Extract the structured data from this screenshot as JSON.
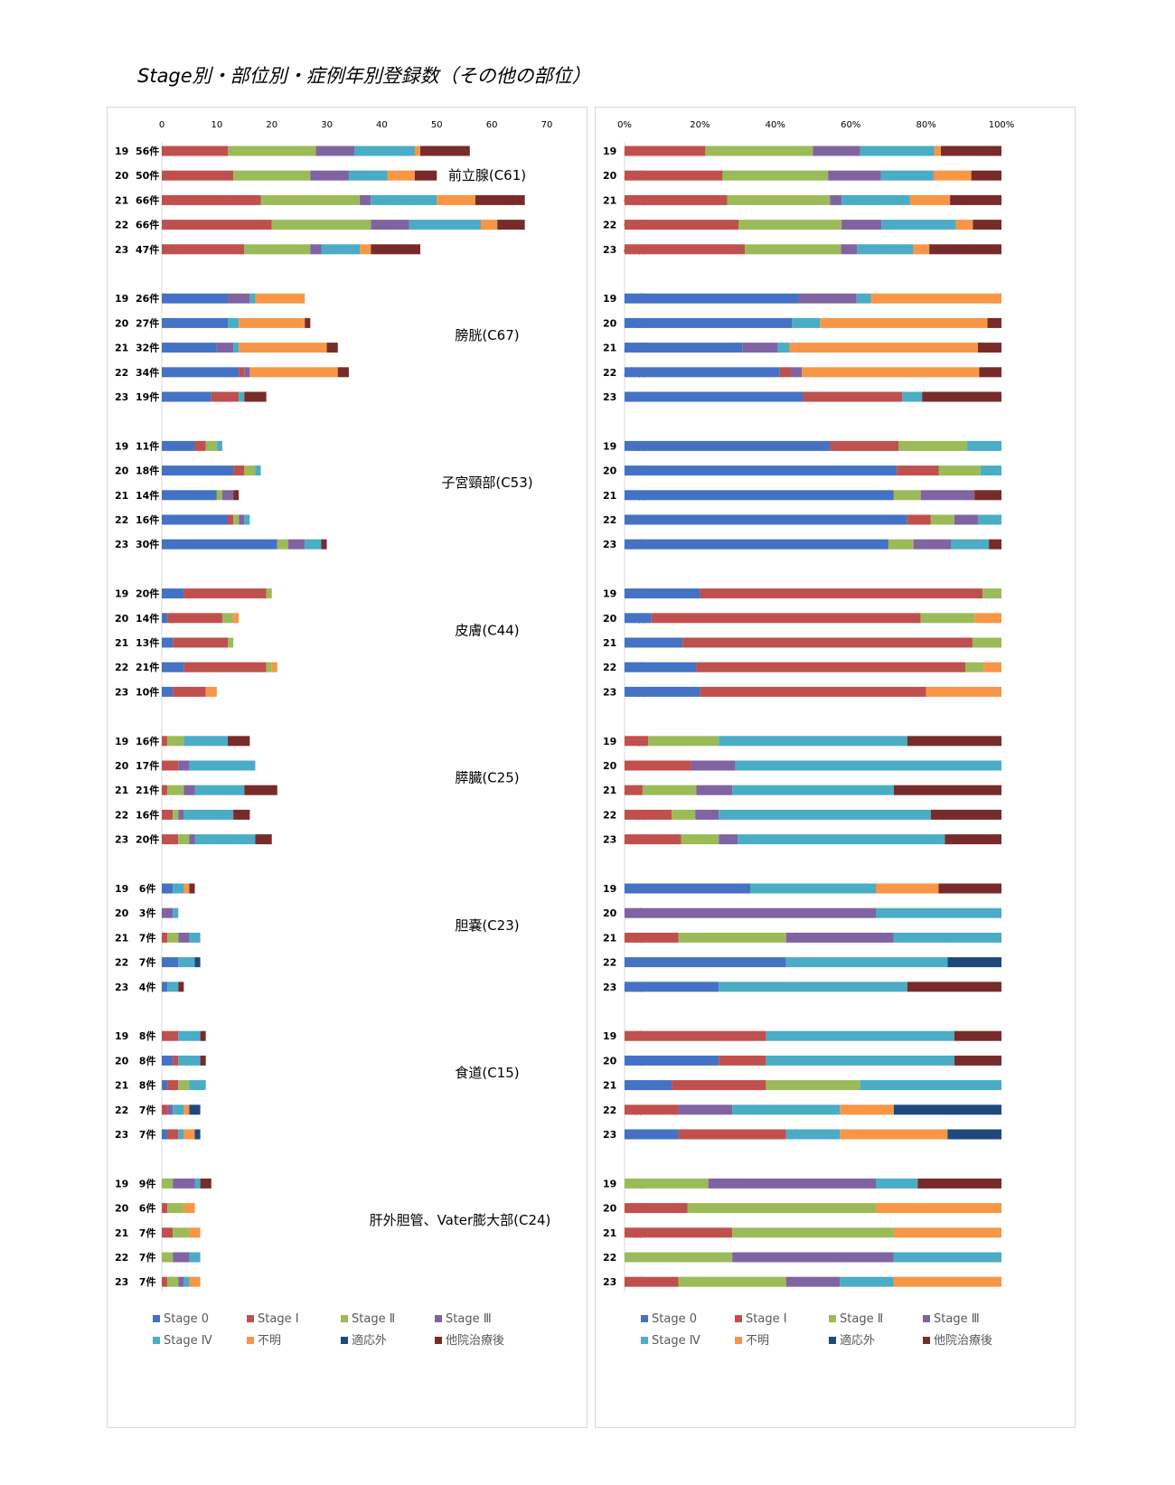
{
  "title": "Stage別・部位別・症例年別登録数（その他の部位）",
  "legend": [
    "Stage 0",
    "Stage Ⅰ",
    "Stage Ⅱ",
    "Stage Ⅲ",
    "Stage Ⅳ",
    "不明",
    "適応外",
    "他院治療後"
  ],
  "colors": [
    "#4472C4",
    "#C0504D",
    "#9BBB59",
    "#8064A2",
    "#4BACC6",
    "#F79646",
    "#1F497D",
    "#772C2A"
  ],
  "chart_data": [
    {
      "type": "bar",
      "orientation": "horizontal",
      "stacked": true,
      "xlim": [
        0,
        70
      ],
      "xticks": [
        "0",
        "10",
        "20",
        "30",
        "40",
        "50",
        "60",
        "70"
      ],
      "groups": [
        {
          "site": "前立腺(C61)",
          "rows": [
            {
              "label": "19  56件",
              "values": [
                0,
                12,
                16,
                7,
                11,
                1,
                0,
                9
              ]
            },
            {
              "label": "20  50件",
              "values": [
                0,
                13,
                14,
                7,
                7,
                5,
                0,
                4
              ]
            },
            {
              "label": "21  66件",
              "values": [
                0,
                18,
                18,
                2,
                12,
                7,
                0,
                9
              ]
            },
            {
              "label": "22  66件",
              "values": [
                0,
                20,
                18,
                7,
                13,
                3,
                0,
                5
              ]
            },
            {
              "label": "23  47件",
              "values": [
                0,
                15,
                12,
                2,
                7,
                2,
                0,
                9
              ]
            }
          ]
        },
        {
          "site": "膀胱(C67)",
          "rows": [
            {
              "label": "19  26件",
              "values": [
                12,
                0,
                0,
                4,
                1,
                9,
                0,
                0
              ]
            },
            {
              "label": "20  27件",
              "values": [
                12,
                0,
                0,
                0,
                2,
                12,
                0,
                1
              ]
            },
            {
              "label": "21  32件",
              "values": [
                10,
                0,
                0,
                3,
                1,
                16,
                0,
                2
              ]
            },
            {
              "label": "22  34件",
              "values": [
                14,
                1,
                0,
                1,
                0,
                16,
                0,
                2
              ]
            },
            {
              "label": "23  19件",
              "values": [
                9,
                5,
                0,
                0,
                1,
                0,
                0,
                4
              ]
            }
          ]
        },
        {
          "site": "子宮頸部(C53)",
          "rows": [
            {
              "label": "19  11件",
              "values": [
                6,
                2,
                2,
                0,
                1,
                0,
                0,
                0
              ]
            },
            {
              "label": "20  18件",
              "values": [
                13,
                2,
                2,
                0,
                1,
                0,
                0,
                0
              ]
            },
            {
              "label": "21  14件",
              "values": [
                10,
                0,
                1,
                2,
                0,
                0,
                0,
                1
              ]
            },
            {
              "label": "22  16件",
              "values": [
                12,
                1,
                1,
                1,
                1,
                0,
                0,
                0
              ]
            },
            {
              "label": "23  30件",
              "values": [
                21,
                0,
                2,
                3,
                3,
                0,
                0,
                1
              ]
            }
          ]
        },
        {
          "site": "皮膚(C44)",
          "rows": [
            {
              "label": "19  20件",
              "values": [
                4,
                15,
                1,
                0,
                0,
                0,
                0,
                0
              ]
            },
            {
              "label": "20  14件",
              "values": [
                1,
                10,
                2,
                0,
                0,
                1,
                0,
                0
              ]
            },
            {
              "label": "21  13件",
              "values": [
                2,
                10,
                1,
                0,
                0,
                0,
                0,
                0
              ]
            },
            {
              "label": "22  21件",
              "values": [
                4,
                15,
                1,
                0,
                0,
                1,
                0,
                0
              ]
            },
            {
              "label": "23  10件",
              "values": [
                2,
                6,
                0,
                0,
                0,
                2,
                0,
                0
              ]
            }
          ]
        },
        {
          "site": "膵臓(C25)",
          "rows": [
            {
              "label": "19  16件",
              "values": [
                0,
                1,
                3,
                0,
                8,
                0,
                0,
                4
              ]
            },
            {
              "label": "20  17件",
              "values": [
                0,
                3,
                0,
                2,
                12,
                0,
                0,
                0
              ]
            },
            {
              "label": "21  21件",
              "values": [
                0,
                1,
                3,
                2,
                9,
                0,
                0,
                6
              ]
            },
            {
              "label": "22  16件",
              "values": [
                0,
                2,
                1,
                1,
                9,
                0,
                0,
                3
              ]
            },
            {
              "label": "23  20件",
              "values": [
                0,
                3,
                2,
                1,
                11,
                0,
                0,
                3
              ]
            }
          ]
        },
        {
          "site": "胆嚢(C23)",
          "rows": [
            {
              "label": "19   6件",
              "values": [
                2,
                0,
                0,
                0,
                2,
                1,
                0,
                1
              ]
            },
            {
              "label": "20   3件",
              "values": [
                0,
                0,
                0,
                2,
                1,
                0,
                0,
                0
              ]
            },
            {
              "label": "21   7件",
              "values": [
                0,
                1,
                2,
                2,
                2,
                0,
                0,
                0
              ]
            },
            {
              "label": "22   7件",
              "values": [
                3,
                0,
                0,
                0,
                3,
                0,
                1,
                0
              ]
            },
            {
              "label": "23   4件",
              "values": [
                1,
                0,
                0,
                0,
                2,
                0,
                0,
                1
              ]
            }
          ]
        },
        {
          "site": "食道(C15)",
          "rows": [
            {
              "label": "19   8件",
              "values": [
                0,
                3,
                0,
                0,
                4,
                0,
                0,
                1
              ]
            },
            {
              "label": "20   8件",
              "values": [
                2,
                1,
                0,
                0,
                4,
                0,
                0,
                1
              ]
            },
            {
              "label": "21   8件",
              "values": [
                1,
                2,
                2,
                0,
                3,
                0,
                0,
                0
              ]
            },
            {
              "label": "22   7件",
              "values": [
                0,
                1,
                0,
                1,
                2,
                1,
                2,
                0
              ]
            },
            {
              "label": "23   7件",
              "values": [
                1,
                2,
                0,
                0,
                1,
                2,
                1,
                0
              ]
            }
          ]
        },
        {
          "site": "肝外胆管、Vater膨大部(C24)",
          "rows": [
            {
              "label": "19   9件",
              "values": [
                0,
                0,
                2,
                4,
                1,
                0,
                0,
                2
              ]
            },
            {
              "label": "20   6件",
              "values": [
                0,
                1,
                3,
                0,
                0,
                2,
                0,
                0
              ]
            },
            {
              "label": "21   7件",
              "values": [
                0,
                2,
                3,
                0,
                0,
                2,
                0,
                0
              ]
            },
            {
              "label": "22   7件",
              "values": [
                0,
                0,
                2,
                3,
                2,
                0,
                0,
                0
              ]
            },
            {
              "label": "23   7件",
              "values": [
                0,
                1,
                2,
                1,
                1,
                2,
                0,
                0
              ]
            }
          ]
        }
      ]
    },
    {
      "type": "bar",
      "orientation": "horizontal",
      "stacked": true,
      "normalized": true,
      "xlim": [
        0,
        100
      ],
      "xticks": [
        "0%",
        "20%",
        "40%",
        "60%",
        "80%",
        "100%"
      ],
      "same_rows_as": "chart 1, values shown as percentage of each row total"
    }
  ]
}
